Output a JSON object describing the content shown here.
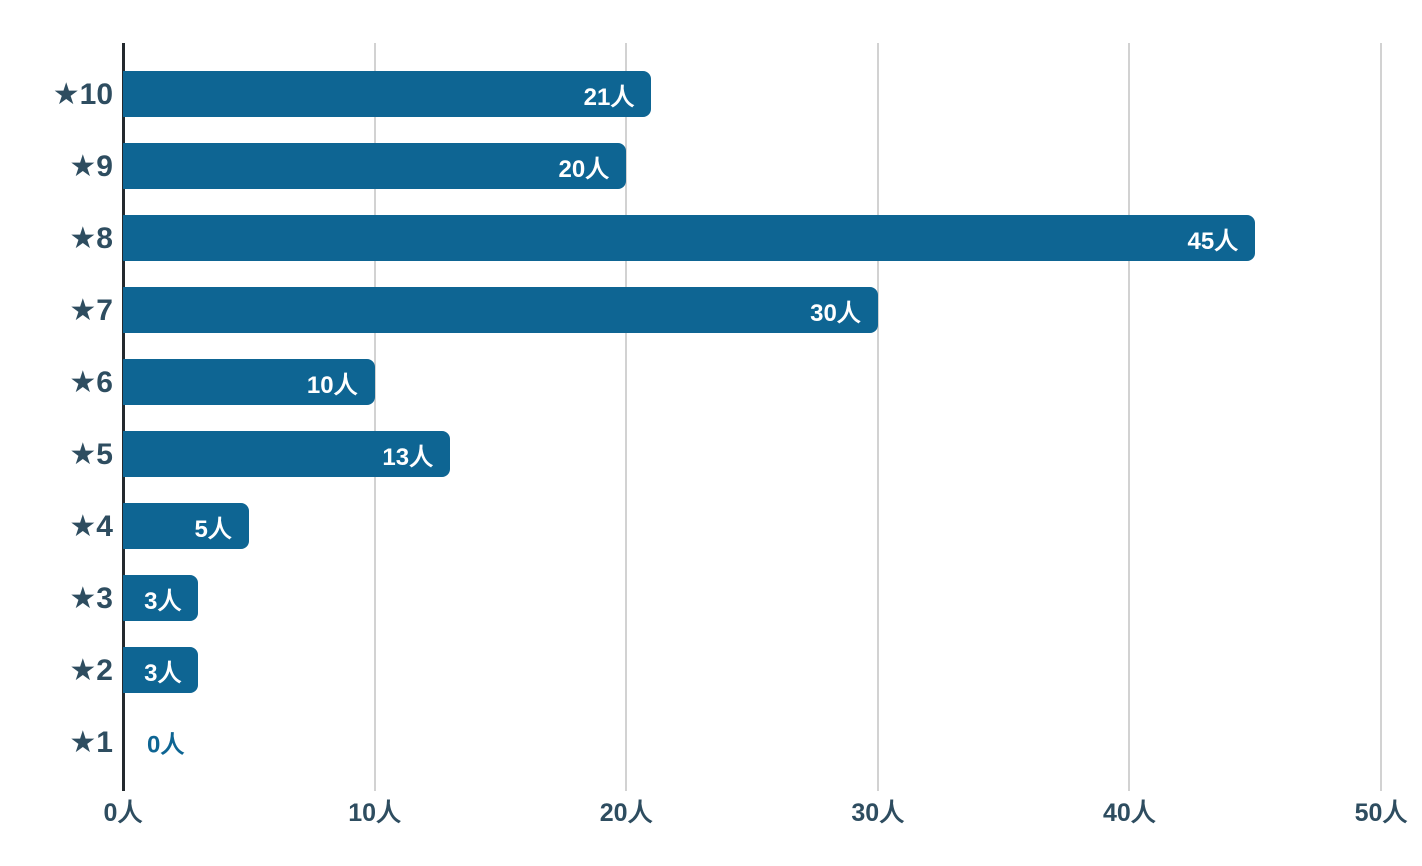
{
  "chart_data": {
    "type": "bar",
    "orientation": "horizontal",
    "title": "",
    "xlabel": "",
    "ylabel": "",
    "unit": "人",
    "categories": [
      "★10",
      "★9",
      "★8",
      "★7",
      "★6",
      "★5",
      "★4",
      "★3",
      "★2",
      "★1"
    ],
    "values": [
      21,
      20,
      45,
      30,
      10,
      13,
      5,
      3,
      3,
      0
    ],
    "value_labels": [
      "21人",
      "20人",
      "45人",
      "30人",
      "10人",
      "13人",
      "5人",
      "3人",
      "3人",
      "0人"
    ],
    "x_ticks": [
      "0人",
      "10人",
      "20人",
      "30人",
      "40人",
      "50人"
    ],
    "x_tick_values": [
      0,
      10,
      20,
      30,
      40,
      50
    ],
    "xlim": [
      0,
      50
    ],
    "grid": true,
    "legend": false,
    "colors": {
      "bar": "#0e6593",
      "value_label_inside": "#ffffff",
      "value_label_zero": "#0e6593",
      "axis_label": "#2e4d60",
      "grid_line": "#d2d2d2",
      "axis_line": "#23292e",
      "background": "#ffffff"
    }
  }
}
